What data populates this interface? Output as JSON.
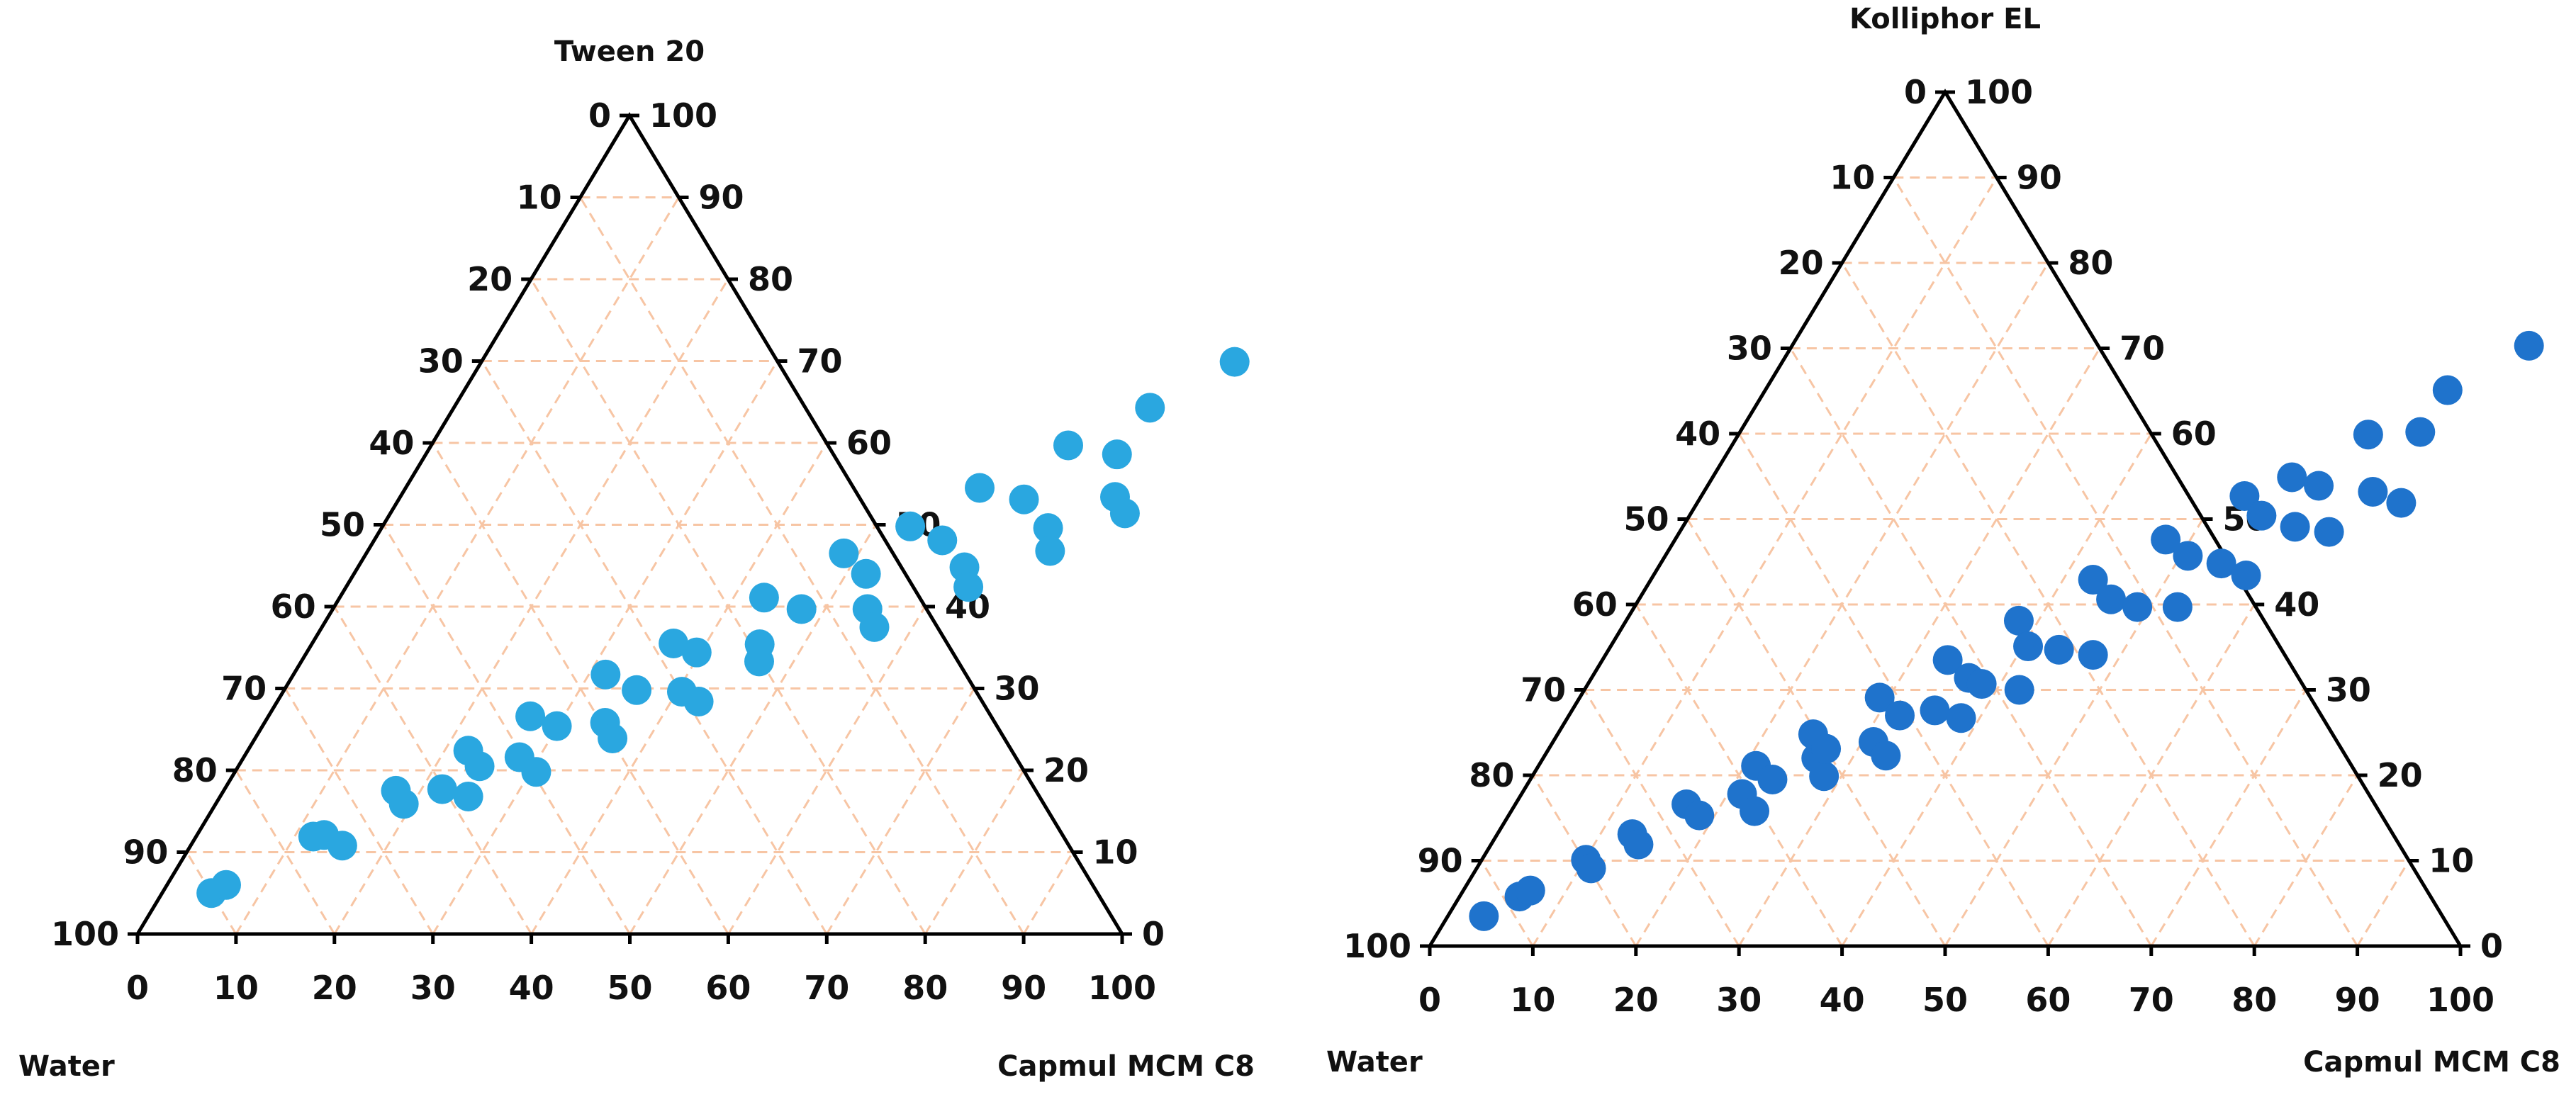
{
  "chart_data": [
    {
      "type": "scatter",
      "subtype": "ternary",
      "top_label": "Tween 20",
      "left_label": "Water",
      "right_label": "Capmul MCM C8",
      "left_axis_ticks": [
        "0",
        "10",
        "20",
        "30",
        "40",
        "50",
        "60",
        "70",
        "80",
        "90",
        "100"
      ],
      "right_axis_ticks": [
        "100",
        "90",
        "80",
        "70",
        "60",
        "50",
        "40",
        "30",
        "20",
        "10",
        "0"
      ],
      "bottom_axis_ticks": [
        "0",
        "10",
        "20",
        "30",
        "40",
        "50",
        "60",
        "70",
        "80",
        "90",
        "100"
      ],
      "grid": true,
      "point_color": "#2aa7e0",
      "grid_color": "#f7c5a4",
      "points": [
        {
          "capmul": 5,
          "tween": 5
        },
        {
          "capmul": 6,
          "tween": 6
        },
        {
          "capmul": 11.9,
          "tween": 11.9
        },
        {
          "capmul": 12.9,
          "tween": 12.1
        },
        {
          "capmul": 15.4,
          "tween": 10.8
        },
        {
          "capmul": 17.5,
          "tween": 17.5
        },
        {
          "capmul": 19.1,
          "tween": 15.9
        },
        {
          "capmul": 22.1,
          "tween": 17.7
        },
        {
          "capmul": 25.2,
          "tween": 16.8
        },
        {
          "capmul": 22.4,
          "tween": 22.4
        },
        {
          "capmul": 24.5,
          "tween": 20.5
        },
        {
          "capmul": 28,
          "tween": 21.6
        },
        {
          "capmul": 30.6,
          "tween": 19.8
        },
        {
          "capmul": 26.6,
          "tween": 26.6
        },
        {
          "capmul": 29.9,
          "tween": 25.4
        },
        {
          "capmul": 34.6,
          "tween": 25.8
        },
        {
          "capmul": 36.3,
          "tween": 23.9
        },
        {
          "capmul": 31.7,
          "tween": 31.7
        },
        {
          "capmul": 35.8,
          "tween": 29.8
        },
        {
          "capmul": 40.5,
          "tween": 29.6
        },
        {
          "capmul": 42.8,
          "tween": 28.4
        },
        {
          "capmul": 36.7,
          "tween": 35.5
        },
        {
          "capmul": 39.6,
          "tween": 34.4
        },
        {
          "capmul": 45.5,
          "tween": 35.4
        },
        {
          "capmul": 46.5,
          "tween": 33.3
        },
        {
          "capmul": 43.1,
          "tween": 41.1
        },
        {
          "capmul": 47.6,
          "tween": 39.7
        },
        {
          "capmul": 54.3,
          "tween": 39.7
        },
        {
          "capmul": 56.1,
          "tween": 37.5
        },
        {
          "capmul": 48.5,
          "tween": 46.5
        },
        {
          "capmul": 52,
          "tween": 44
        },
        {
          "capmul": 61.6,
          "tween": 44.8
        },
        {
          "capmul": 63.2,
          "tween": 42.4
        },
        {
          "capmul": 53.6,
          "tween": 49.8
        },
        {
          "capmul": 57.7,
          "tween": 48.1
        },
        {
          "capmul": 67.7,
          "tween": 49.6
        },
        {
          "capmul": 69.3,
          "tween": 46.8
        },
        {
          "capmul": 58.3,
          "tween": 54.5
        },
        {
          "capmul": 63.5,
          "tween": 53.1
        },
        {
          "capmul": 72.6,
          "tween": 53.4
        },
        {
          "capmul": 74.6,
          "tween": 51.4
        },
        {
          "capmul": 64.7,
          "tween": 59.7
        },
        {
          "capmul": 70.2,
          "tween": 58.6
        },
        {
          "capmul": 70.7,
          "tween": 64.3
        },
        {
          "capmul": 76.5,
          "tween": 69.9
        }
      ]
    },
    {
      "type": "scatter",
      "subtype": "ternary",
      "top_label": "Kolliphor EL",
      "left_label": "Water",
      "right_label": "Capmul MCM C8",
      "left_axis_ticks": [
        "0",
        "10",
        "20",
        "30",
        "40",
        "50",
        "60",
        "70",
        "80",
        "90",
        "100"
      ],
      "right_axis_ticks": [
        "100",
        "90",
        "80",
        "70",
        "60",
        "50",
        "40",
        "30",
        "20",
        "10",
        "0"
      ],
      "bottom_axis_ticks": [
        "0",
        "10",
        "20",
        "30",
        "40",
        "50",
        "60",
        "70",
        "80",
        "90",
        "100"
      ],
      "grid": true,
      "point_color": "#1f73cc",
      "grid_color": "#f7c5a4",
      "points": [
        {
          "capmul": 3.5,
          "tween": 3.5
        },
        {
          "capmul": 5.8,
          "tween": 5.8
        },
        {
          "capmul": 6.5,
          "tween": 6.5
        },
        {
          "capmul": 10.1,
          "tween": 10.1
        },
        {
          "capmul": 11.1,
          "tween": 9.1
        },
        {
          "capmul": 13.1,
          "tween": 13.1
        },
        {
          "capmul": 14.3,
          "tween": 11.9
        },
        {
          "capmul": 16.6,
          "tween": 16.6
        },
        {
          "capmul": 18.5,
          "tween": 15.3
        },
        {
          "capmul": 21.4,
          "tween": 17.8
        },
        {
          "capmul": 23.6,
          "tween": 15.8
        },
        {
          "capmul": 21.1,
          "tween": 21.1
        },
        {
          "capmul": 23.5,
          "tween": 19.5
        },
        {
          "capmul": 26.5,
          "tween": 22
        },
        {
          "capmul": 28.3,
          "tween": 19.9
        },
        {
          "capmul": 24.8,
          "tween": 24.8
        },
        {
          "capmul": 26.9,
          "tween": 23.1
        },
        {
          "capmul": 31.1,
          "tween": 23.9
        },
        {
          "capmul": 33.1,
          "tween": 22.3
        },
        {
          "capmul": 29.1,
          "tween": 29.1
        },
        {
          "capmul": 32.1,
          "tween": 27
        },
        {
          "capmul": 35.2,
          "tween": 27.6
        },
        {
          "capmul": 38.2,
          "tween": 26.7
        },
        {
          "capmul": 33.5,
          "tween": 33.5
        },
        {
          "capmul": 36.6,
          "tween": 31.4
        },
        {
          "capmul": 38.2,
          "tween": 30.7
        },
        {
          "capmul": 42.2,
          "tween": 30
        },
        {
          "capmul": 38.1,
          "tween": 38.1
        },
        {
          "capmul": 40.5,
          "tween": 35.1
        },
        {
          "capmul": 43.7,
          "tween": 34.7
        },
        {
          "capmul": 47.3,
          "tween": 34.1
        },
        {
          "capmul": 42.9,
          "tween": 42.9
        },
        {
          "capmul": 45.8,
          "tween": 40.6
        },
        {
          "capmul": 48.8,
          "tween": 39.7
        },
        {
          "capmul": 52.7,
          "tween": 39.7
        },
        {
          "capmul": 47.6,
          "tween": 47.6
        },
        {
          "capmul": 50.7,
          "tween": 45.7
        },
        {
          "capmul": 54.4,
          "tween": 44.8
        },
        {
          "capmul": 57.5,
          "tween": 43.4
        },
        {
          "capmul": 52.7,
          "tween": 52.7
        },
        {
          "capmul": 55.5,
          "tween": 50.4
        },
        {
          "capmul": 59.4,
          "tween": 49.1
        },
        {
          "capmul": 63,
          "tween": 48.5
        },
        {
          "capmul": 56.2,
          "tween": 54.9
        },
        {
          "capmul": 59.3,
          "tween": 53.9
        },
        {
          "capmul": 64.9,
          "tween": 53.2
        },
        {
          "capmul": 68.3,
          "tween": 51.9
        },
        {
          "capmul": 61.1,
          "tween": 59.9
        },
        {
          "capmul": 66,
          "tween": 60.2
        },
        {
          "capmul": 66.2,
          "tween": 65.1
        },
        {
          "capmul": 71.5,
          "tween": 70.3
        }
      ]
    }
  ]
}
